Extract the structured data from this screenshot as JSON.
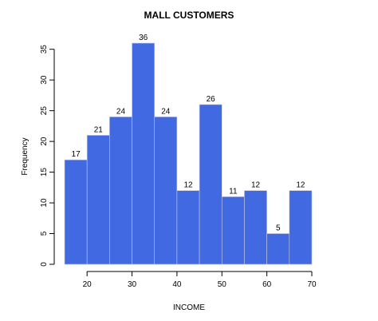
{
  "chart_data": {
    "type": "bar",
    "title": "MALL CUSTOMERS",
    "xlabel": "INCOME",
    "ylabel": "Frequency",
    "bins": [
      {
        "from": 15,
        "to": 20,
        "value": 17
      },
      {
        "from": 20,
        "to": 25,
        "value": 21
      },
      {
        "from": 25,
        "to": 30,
        "value": 24
      },
      {
        "from": 30,
        "to": 35,
        "value": 36
      },
      {
        "from": 35,
        "to": 40,
        "value": 24
      },
      {
        "from": 40,
        "to": 45,
        "value": 12
      },
      {
        "from": 45,
        "to": 50,
        "value": 26
      },
      {
        "from": 50,
        "to": 55,
        "value": 11
      },
      {
        "from": 55,
        "to": 60,
        "value": 12
      },
      {
        "from": 60,
        "to": 65,
        "value": 5
      },
      {
        "from": 65,
        "to": 70,
        "value": 12
      }
    ],
    "xlim": [
      15,
      70
    ],
    "ylim": [
      0,
      36
    ],
    "xticks": [
      20,
      30,
      40,
      50,
      60,
      70
    ],
    "yticks": [
      0,
      5,
      10,
      15,
      20,
      25,
      30,
      35
    ],
    "bar_color": "#4169e1",
    "grid": false,
    "legend": "none"
  }
}
